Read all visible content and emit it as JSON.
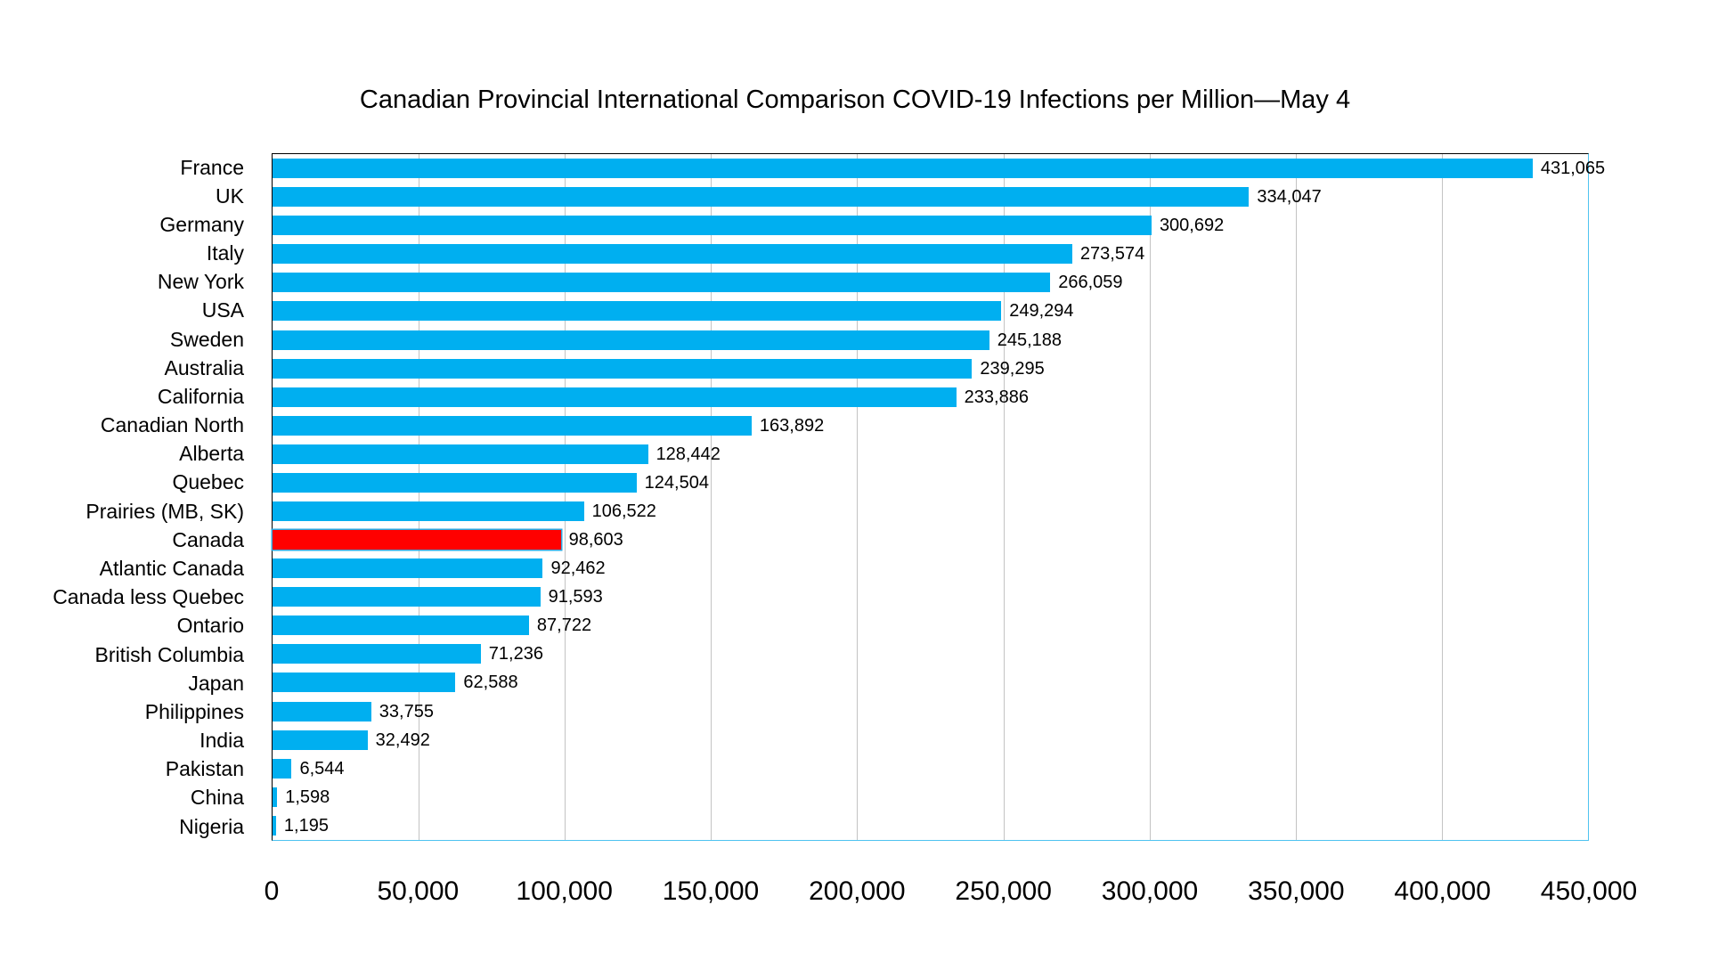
{
  "chart_data": {
    "type": "bar",
    "orientation": "horizontal",
    "title": "Canadian Provincial International Comparison COVID-19 Infections per Million—May 4",
    "categories": [
      "France",
      "UK",
      "Germany",
      "Italy",
      "New York",
      "USA",
      "Sweden",
      "Australia",
      "California",
      "Canadian North",
      "Alberta",
      "Quebec",
      "Prairies (MB, SK)",
      "Canada",
      "Atlantic Canada",
      "Canada less Quebec",
      "Ontario",
      "British Columbia",
      "Japan",
      "Philippines",
      "India",
      "Pakistan",
      "China",
      "Nigeria"
    ],
    "values": [
      431065,
      334047,
      300692,
      273574,
      266059,
      249294,
      245188,
      239295,
      233886,
      163892,
      128442,
      124504,
      106522,
      98603,
      92462,
      91593,
      87722,
      71236,
      62588,
      33755,
      32492,
      6544,
      1598,
      1195
    ],
    "value_labels": [
      "431,065",
      "334,047",
      "300,692",
      "273,574",
      "266,059",
      "249,294",
      "245,188",
      "239,295",
      "233,886",
      "163,892",
      "128,442",
      "124,504",
      "106,522",
      "98,603",
      "92,462",
      "91,593",
      "87,722",
      "71,236",
      "62,588",
      "33,755",
      "32,492",
      "6,544",
      "1,598",
      "1,195"
    ],
    "highlight_category": "Canada",
    "highlight_index": 13,
    "xlabel": "",
    "ylabel": "",
    "xlim": [
      0,
      450000
    ],
    "x_ticks": [
      {
        "value": 0,
        "label": "0"
      },
      {
        "value": 50000,
        "label": "50,000"
      },
      {
        "value": 100000,
        "label": "100,000"
      },
      {
        "value": 150000,
        "label": "150,000"
      },
      {
        "value": 200000,
        "label": "200,000"
      },
      {
        "value": 250000,
        "label": "250,000"
      },
      {
        "value": 300000,
        "label": "300,000"
      },
      {
        "value": 350000,
        "label": "350,000"
      },
      {
        "value": 400000,
        "label": "400,000"
      },
      {
        "value": 450000,
        "label": "450,000"
      }
    ],
    "grid": true,
    "legend": false,
    "colors": {
      "bar": "#00AFF0",
      "highlight_fill": "#FF0000",
      "highlight_border": "#2FA8E0",
      "grid_line": "#C3C3C3",
      "axis_dark": "#000000",
      "axis_light": "#4FC3F0",
      "text": "#000000",
      "background": "#FFFFFF"
    }
  }
}
